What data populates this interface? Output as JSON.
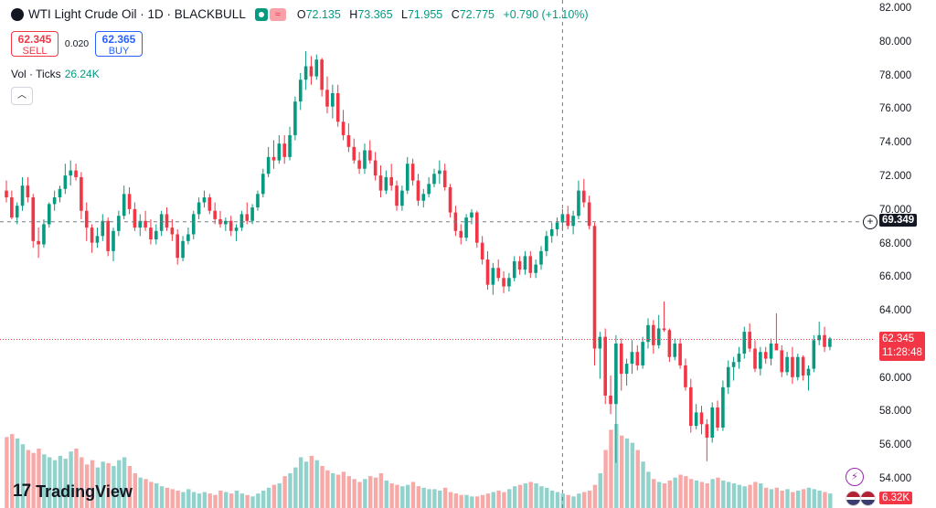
{
  "legend": {
    "symbol_icon": "oil-drop-icon",
    "title": "WTI Light Crude Oil · 1D · BLACKBULL",
    "o_label": "O",
    "o_value": "72.135",
    "h_label": "H",
    "h_value": "73.365",
    "l_label": "L",
    "l_value": "71.955",
    "c_label": "C",
    "c_value": "72.775",
    "change": "+0.790 (+1.10%)"
  },
  "trade": {
    "sell_price": "62.345",
    "sell_label": "SELL",
    "spread": "0.020",
    "buy_price": "62.365",
    "buy_label": "BUY"
  },
  "volume": {
    "label": "Vol · Ticks",
    "value": "26.24K"
  },
  "logo": {
    "mark": "17",
    "text": "TradingView"
  },
  "price_axis": {
    "ticks": [
      "82.000",
      "80.000",
      "78.000",
      "76.000",
      "74.000",
      "72.000",
      "70.000",
      "68.000",
      "66.000",
      "64.000",
      "62.000",
      "60.000",
      "58.000",
      "56.000",
      "54.000"
    ],
    "crosshair_price": "69.349",
    "last_price": "62.345",
    "countdown": "11:28:48",
    "volume_tag": "6.32K"
  },
  "colors": {
    "up": "#089981",
    "down": "#f23645",
    "vol_up": "#92d2cc",
    "vol_down": "#f7a9a7",
    "text": "#131722"
  },
  "chart_data": {
    "type": "candlestick",
    "symbol": "WTI Light Crude Oil",
    "timeframe": "1D",
    "ylim": [
      53.3,
      82.6
    ],
    "crosshair": {
      "price": 69.349,
      "bar_index": 104
    },
    "last_price": 62.345,
    "ohlc": [
      [
        71.2,
        71.8,
        70.5,
        70.8
      ],
      [
        70.8,
        71.2,
        69.5,
        69.6
      ],
      [
        69.6,
        70.5,
        69.2,
        70.3
      ],
      [
        70.3,
        72.0,
        70.0,
        71.5
      ],
      [
        71.5,
        72.0,
        70.5,
        70.8
      ],
      [
        70.8,
        71.0,
        67.8,
        68.2
      ],
      [
        68.2,
        69.0,
        67.2,
        68.0
      ],
      [
        68.0,
        69.5,
        67.8,
        69.2
      ],
      [
        69.2,
        70.5,
        69.0,
        70.4
      ],
      [
        70.4,
        71.2,
        70.0,
        70.8
      ],
      [
        70.8,
        71.5,
        70.5,
        71.3
      ],
      [
        71.3,
        72.8,
        71.0,
        72.1
      ],
      [
        72.1,
        73.0,
        71.5,
        72.4
      ],
      [
        72.4,
        72.8,
        71.8,
        72.0
      ],
      [
        72.0,
        72.3,
        69.5,
        70.0
      ],
      [
        70.0,
        70.5,
        68.2,
        69.0
      ],
      [
        69.0,
        69.2,
        67.5,
        68.1
      ],
      [
        68.1,
        69.0,
        67.8,
        68.5
      ],
      [
        68.5,
        69.8,
        68.2,
        69.4
      ],
      [
        69.4,
        69.6,
        67.3,
        67.6
      ],
      [
        67.6,
        69.0,
        67.0,
        68.8
      ],
      [
        68.8,
        70.0,
        68.5,
        69.7
      ],
      [
        69.7,
        71.5,
        69.5,
        71.0
      ],
      [
        71.0,
        71.4,
        69.8,
        70.1
      ],
      [
        70.1,
        70.5,
        68.8,
        69.0
      ],
      [
        69.0,
        69.8,
        68.5,
        69.4
      ],
      [
        69.4,
        70.0,
        68.8,
        69.0
      ],
      [
        69.0,
        69.5,
        68.0,
        68.3
      ],
      [
        68.3,
        69.2,
        68.0,
        68.8
      ],
      [
        68.8,
        70.0,
        68.5,
        69.8
      ],
      [
        69.8,
        70.2,
        68.8,
        69.0
      ],
      [
        69.0,
        69.5,
        68.2,
        68.6
      ],
      [
        68.6,
        68.9,
        66.8,
        67.2
      ],
      [
        67.2,
        68.5,
        67.0,
        68.2
      ],
      [
        68.2,
        69.0,
        68.0,
        68.6
      ],
      [
        68.6,
        70.0,
        68.3,
        69.8
      ],
      [
        69.8,
        70.8,
        69.5,
        70.5
      ],
      [
        70.5,
        71.2,
        70.2,
        70.8
      ],
      [
        70.8,
        71.0,
        69.8,
        70.0
      ],
      [
        70.0,
        70.5,
        69.2,
        69.5
      ],
      [
        69.5,
        70.0,
        69.0,
        69.2
      ],
      [
        69.2,
        69.6,
        68.8,
        69.4
      ],
      [
        69.4,
        69.7,
        68.5,
        68.8
      ],
      [
        68.8,
        69.2,
        68.2,
        69.0
      ],
      [
        69.0,
        70.0,
        68.8,
        69.8
      ],
      [
        69.8,
        70.5,
        69.2,
        69.4
      ],
      [
        69.4,
        70.4,
        69.2,
        70.2
      ],
      [
        70.2,
        71.2,
        70.0,
        71.0
      ],
      [
        71.0,
        72.5,
        70.8,
        72.2
      ],
      [
        72.2,
        73.8,
        72.0,
        73.2
      ],
      [
        73.2,
        74.2,
        72.5,
        73.0
      ],
      [
        73.0,
        74.5,
        72.8,
        74.0
      ],
      [
        74.0,
        74.5,
        72.8,
        73.2
      ],
      [
        73.2,
        75.0,
        73.0,
        74.5
      ],
      [
        74.5,
        76.8,
        74.2,
        76.5
      ],
      [
        76.5,
        78.2,
        76.0,
        77.8
      ],
      [
        77.8,
        79.5,
        77.2,
        78.6
      ],
      [
        78.6,
        79.2,
        77.5,
        78.0
      ],
      [
        78.0,
        79.3,
        77.8,
        79.0
      ],
      [
        79.0,
        79.1,
        76.8,
        77.2
      ],
      [
        77.2,
        78.0,
        75.8,
        76.2
      ],
      [
        76.2,
        77.5,
        75.5,
        77.0
      ],
      [
        77.0,
        77.5,
        75.0,
        75.3
      ],
      [
        75.3,
        76.0,
        74.2,
        74.5
      ],
      [
        74.5,
        75.2,
        73.5,
        73.8
      ],
      [
        73.8,
        74.3,
        72.8,
        73.0
      ],
      [
        73.0,
        73.5,
        72.2,
        72.5
      ],
      [
        72.5,
        74.0,
        72.2,
        73.6
      ],
      [
        73.6,
        74.2,
        72.8,
        73.0
      ],
      [
        73.0,
        73.5,
        71.8,
        72.1
      ],
      [
        72.1,
        72.7,
        70.8,
        71.2
      ],
      [
        71.2,
        72.4,
        71.0,
        72.0
      ],
      [
        72.0,
        72.8,
        71.2,
        71.5
      ],
      [
        71.5,
        71.8,
        70.0,
        70.3
      ],
      [
        70.3,
        71.5,
        70.0,
        71.2
      ],
      [
        71.2,
        73.2,
        71.0,
        72.8
      ],
      [
        72.8,
        73.1,
        71.5,
        71.8
      ],
      [
        71.8,
        72.2,
        70.3,
        70.6
      ],
      [
        70.6,
        71.3,
        70.2,
        71.0
      ],
      [
        71.0,
        72.0,
        70.8,
        71.6
      ],
      [
        71.6,
        72.5,
        71.4,
        72.2
      ],
      [
        72.2,
        73.0,
        71.6,
        72.4
      ],
      [
        72.4,
        72.8,
        71.2,
        71.4
      ],
      [
        71.4,
        71.6,
        69.6,
        69.9
      ],
      [
        69.9,
        70.3,
        68.5,
        68.8
      ],
      [
        68.8,
        69.2,
        68.0,
        68.4
      ],
      [
        68.4,
        69.8,
        68.2,
        69.6
      ],
      [
        69.6,
        70.1,
        69.2,
        69.9
      ],
      [
        69.9,
        70.0,
        67.8,
        68.1
      ],
      [
        68.1,
        68.5,
        66.8,
        67.1
      ],
      [
        67.1,
        67.6,
        65.3,
        65.6
      ],
      [
        65.6,
        66.9,
        65.0,
        66.6
      ],
      [
        66.6,
        67.1,
        65.8,
        66.0
      ],
      [
        66.0,
        66.4,
        65.1,
        65.5
      ],
      [
        65.5,
        66.3,
        65.2,
        66.0
      ],
      [
        66.0,
        67.3,
        65.8,
        67.0
      ],
      [
        67.0,
        67.3,
        66.2,
        66.5
      ],
      [
        66.5,
        67.6,
        66.2,
        67.3
      ],
      [
        67.3,
        67.6,
        66.0,
        66.3
      ],
      [
        66.3,
        67.1,
        66.0,
        66.8
      ],
      [
        66.8,
        67.9,
        66.5,
        67.6
      ],
      [
        67.6,
        68.8,
        67.3,
        68.5
      ],
      [
        68.5,
        69.3,
        68.1,
        68.9
      ],
      [
        68.9,
        69.6,
        68.5,
        69.3
      ],
      [
        69.3,
        70.1,
        68.8,
        69.8
      ],
      [
        69.8,
        70.3,
        68.9,
        69.1
      ],
      [
        69.1,
        70.0,
        68.6,
        69.7
      ],
      [
        69.7,
        71.8,
        69.5,
        71.2
      ],
      [
        71.2,
        71.9,
        70.2,
        70.5
      ],
      [
        70.5,
        70.9,
        68.9,
        69.1
      ],
      [
        69.1,
        69.3,
        60.8,
        61.8
      ],
      [
        61.8,
        62.8,
        60.0,
        62.5
      ],
      [
        62.5,
        63.0,
        58.5,
        59.0
      ],
      [
        59.0,
        60.2,
        57.9,
        58.5
      ],
      [
        58.5,
        62.6,
        55.0,
        62.1
      ],
      [
        62.1,
        62.4,
        59.3,
        60.3
      ],
      [
        60.3,
        61.2,
        59.6,
        60.9
      ],
      [
        60.9,
        62.3,
        60.3,
        61.6
      ],
      [
        61.6,
        62.0,
        60.5,
        60.8
      ],
      [
        60.8,
        62.5,
        60.6,
        62.2
      ],
      [
        62.2,
        63.6,
        61.8,
        63.2
      ],
      [
        63.2,
        63.5,
        61.5,
        62.0
      ],
      [
        62.0,
        63.8,
        61.8,
        63.0
      ],
      [
        63.0,
        64.6,
        62.8,
        62.9
      ],
      [
        62.9,
        63.0,
        61.0,
        61.3
      ],
      [
        61.3,
        62.4,
        61.1,
        62.1
      ],
      [
        62.1,
        62.4,
        60.6,
        60.8
      ],
      [
        60.8,
        61.2,
        59.3,
        59.5
      ],
      [
        59.5,
        60.0,
        56.8,
        57.2
      ],
      [
        57.2,
        58.5,
        57.0,
        58.0
      ],
      [
        58.0,
        58.4,
        56.7,
        57.3
      ],
      [
        57.3,
        57.6,
        55.1,
        56.5
      ],
      [
        56.5,
        58.6,
        56.2,
        58.3
      ],
      [
        58.3,
        58.7,
        56.9,
        57.1
      ],
      [
        57.1,
        59.9,
        56.9,
        59.5
      ],
      [
        59.5,
        61.1,
        59.1,
        60.7
      ],
      [
        60.7,
        61.3,
        59.9,
        61.0
      ],
      [
        61.0,
        61.9,
        60.6,
        61.5
      ],
      [
        61.5,
        63.1,
        61.2,
        62.8
      ],
      [
        62.8,
        63.3,
        61.6,
        61.8
      ],
      [
        61.8,
        62.3,
        60.4,
        60.6
      ],
      [
        60.6,
        61.9,
        60.2,
        61.6
      ],
      [
        61.6,
        61.9,
        60.9,
        61.2
      ],
      [
        61.2,
        62.4,
        60.8,
        62.1
      ],
      [
        62.1,
        63.9,
        61.9,
        61.7
      ],
      [
        61.7,
        62.0,
        60.1,
        60.4
      ],
      [
        60.4,
        61.6,
        60.2,
        61.3
      ],
      [
        61.3,
        61.9,
        59.7,
        60.1
      ],
      [
        60.1,
        61.5,
        59.9,
        61.3
      ],
      [
        61.3,
        61.4,
        59.9,
        60.2
      ],
      [
        60.2,
        60.8,
        59.3,
        60.6
      ],
      [
        60.6,
        62.6,
        60.4,
        62.3
      ],
      [
        62.3,
        63.4,
        62.0,
        62.6
      ],
      [
        62.6,
        63.1,
        61.6,
        61.9
      ],
      [
        61.9,
        62.5,
        61.7,
        62.4
      ]
    ],
    "volume": [
      49,
      51,
      48,
      44,
      40,
      38,
      41,
      37,
      35,
      33,
      36,
      34,
      39,
      41,
      35,
      30,
      33,
      28,
      32,
      31,
      29,
      33,
      35,
      29,
      24,
      21,
      20,
      18,
      17,
      15,
      14,
      13,
      12,
      11,
      13,
      11,
      10,
      11,
      10,
      9,
      12,
      11,
      10,
      12,
      10,
      9,
      8,
      10,
      12,
      14,
      16,
      17,
      22,
      24,
      28,
      35,
      32,
      36,
      33,
      29,
      26,
      24,
      23,
      25,
      22,
      20,
      18,
      20,
      22,
      21,
      24,
      19,
      17,
      16,
      15,
      16,
      18,
      15,
      14,
      13,
      13,
      12,
      14,
      11,
      10,
      9,
      9,
      8,
      8,
      9,
      10,
      11,
      12,
      11,
      13,
      15,
      16,
      17,
      18,
      17,
      15,
      14,
      12,
      11,
      10,
      9,
      8,
      10,
      11,
      12,
      16,
      24,
      40,
      54,
      58,
      50,
      48,
      45,
      40,
      32,
      25,
      20,
      18,
      17,
      19,
      21,
      23,
      22,
      20,
      19,
      18,
      17,
      20,
      21,
      19,
      18,
      17,
      16,
      15,
      16,
      18,
      17,
      14,
      13,
      14,
      12,
      13,
      11,
      12,
      13,
      14,
      13,
      12,
      11,
      10,
      9,
      10,
      11,
      14,
      12
    ]
  }
}
